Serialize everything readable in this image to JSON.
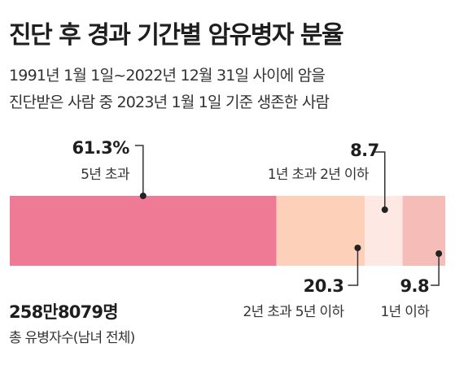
{
  "title": "진단 후 경과 기간별 암유병자 분율",
  "subtitle_line1": "1991년 1월 1일~2022년 12월 31일 사이에  암을",
  "subtitle_line2": "진단받은 사람 중 2023년 1월 1일 기준 생존한 사람",
  "total": {
    "value": "258만8079명",
    "label": "총 유병자수(남녀 전체)"
  },
  "colors": [
    "#ee7a95",
    "#fcd0b9",
    "#fde8e3",
    "#f6bdb8"
  ],
  "chart_data": {
    "type": "bar",
    "orientation": "horizontal-stacked",
    "unit": "%",
    "categories": [
      "5년 초과",
      "2년 초과 5년 이하",
      "1년 초과 2년 이하",
      "1년 이하"
    ],
    "values": [
      61.3,
      20.3,
      8.7,
      9.8
    ],
    "value_labels": [
      "61.3%",
      "20.3",
      "8.7",
      "9.8"
    ],
    "label_positions": [
      "top",
      "bottom",
      "top",
      "bottom"
    ]
  }
}
